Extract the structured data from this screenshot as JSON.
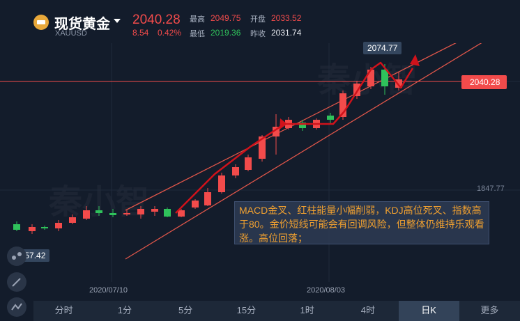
{
  "header": {
    "title": "现货黄金",
    "symbol": "XAUUSD",
    "price": "2040.28",
    "change": "8.54",
    "change_pct": "0.42%",
    "high_label": "最高",
    "high": "2049.75",
    "open_label": "开盘",
    "open": "2033.52",
    "low_label": "最低",
    "low": "2019.36",
    "prev_label": "昨收",
    "prev": "2031.74"
  },
  "chart": {
    "high_tag": "2074.77",
    "last_tag": "2040.28",
    "low_tag": "1757.42",
    "axis_level": "1847.77",
    "dates": [
      "2020/07/10",
      "2020/08/03"
    ],
    "annotation": "MACD金叉、红柱能量小幅削弱，KDJ高位死叉、指数高于80。金价短线可能会有回调风险，但整体仍维持乐观看涨。高位回落；",
    "watermark": "秦小智",
    "colors": {
      "up": "#f24b4b",
      "down": "#2fc25b",
      "channel": "#e0564a",
      "arrow": "#d0121b"
    }
  },
  "timeframes": [
    "分时",
    "1分",
    "5分",
    "15分",
    "1时",
    "4时",
    "日K",
    "更多"
  ],
  "active_timeframe": "日K"
}
